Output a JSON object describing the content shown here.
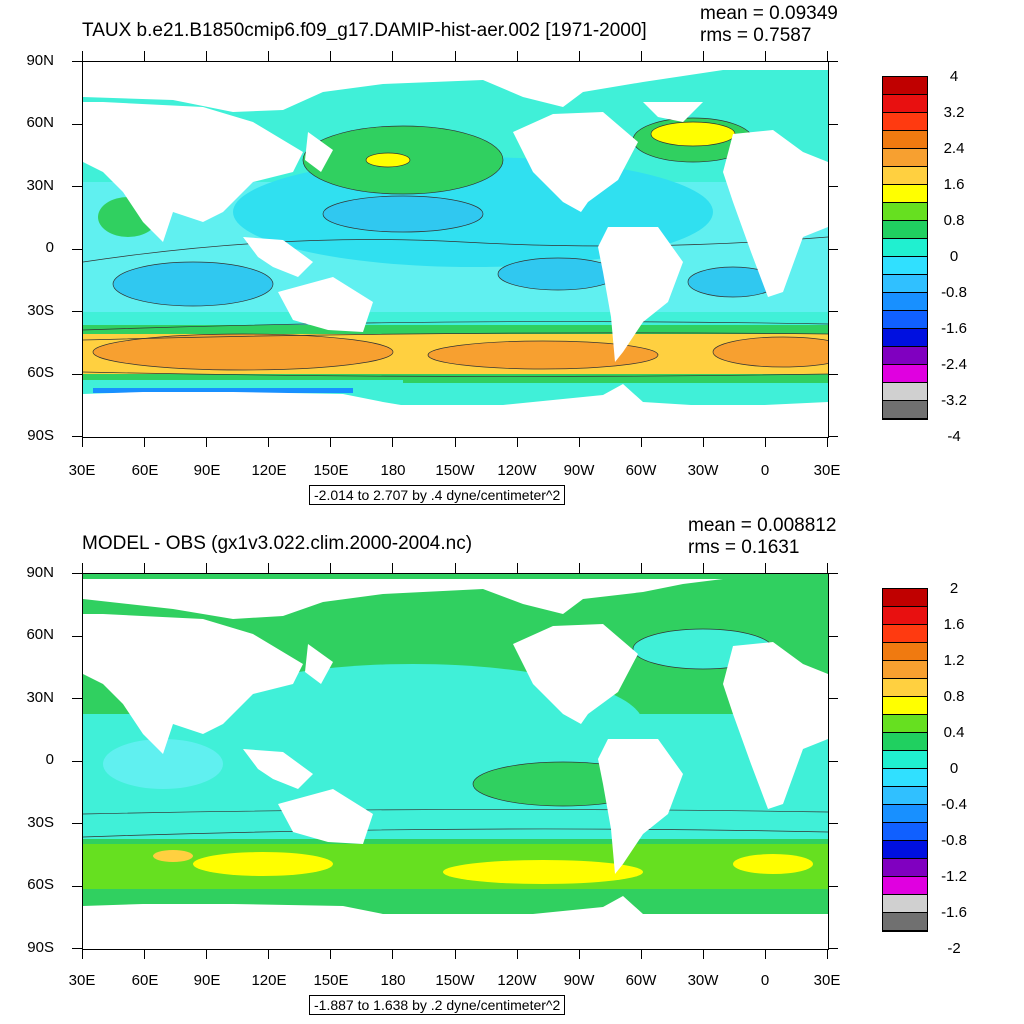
{
  "panels": [
    {
      "title": "TAUX b.e21.B1850cmip6.f09_g17.DAMIP-hist-aer.002 [1971-2000]",
      "mean": "mean = 0.09349",
      "rms": "rms = 0.7587",
      "range_note": "-2.014 to 2.707 by .4 dyne/centimeter^2",
      "colorbar_labels": [
        "4",
        "3.2",
        "2.4",
        "1.6",
        "0.8",
        "0",
        "-0.8",
        "-1.6",
        "-2.4",
        "-3.2",
        "-4"
      ],
      "colorbar_colors": [
        "#c00000",
        "#e81010",
        "#ff3a10",
        "#f07a10",
        "#f7a030",
        "#ffd040",
        "#ffff00",
        "#66e020",
        "#20d060",
        "#20f0d0",
        "#30e0ff",
        "#30c0ff",
        "#1890ff",
        "#1060ff",
        "#0010e0",
        "#8000c0",
        "#e000e0",
        "#d0d0d0",
        "#707070"
      ]
    },
    {
      "title": "MODEL - OBS (gx1v3.022.clim.2000-2004.nc)",
      "mean": "mean = 0.008812",
      "rms": "rms = 0.1631",
      "range_note": "-1.887 to 1.638 by .2 dyne/centimeter^2",
      "colorbar_labels": [
        "2",
        "1.6",
        "1.2",
        "0.8",
        "0.4",
        "0",
        "-0.4",
        "-0.8",
        "-1.2",
        "-1.6",
        "-2"
      ],
      "colorbar_colors": [
        "#c00000",
        "#e81010",
        "#ff3a10",
        "#f07a10",
        "#f7a030",
        "#ffd040",
        "#ffff00",
        "#66e020",
        "#20d060",
        "#20f0d0",
        "#30e0ff",
        "#30c0ff",
        "#1890ff",
        "#1060ff",
        "#0010e0",
        "#8000c0",
        "#e000e0",
        "#d0d0d0",
        "#707070"
      ]
    }
  ],
  "axes": {
    "lat_labels": [
      "90N",
      "60N",
      "30N",
      "0",
      "30S",
      "60S",
      "90S"
    ],
    "lon_labels": [
      "30E",
      "60E",
      "90E",
      "120E",
      "150E",
      "180",
      "150W",
      "120W",
      "90W",
      "60W",
      "30W",
      "0",
      "30E"
    ]
  }
}
